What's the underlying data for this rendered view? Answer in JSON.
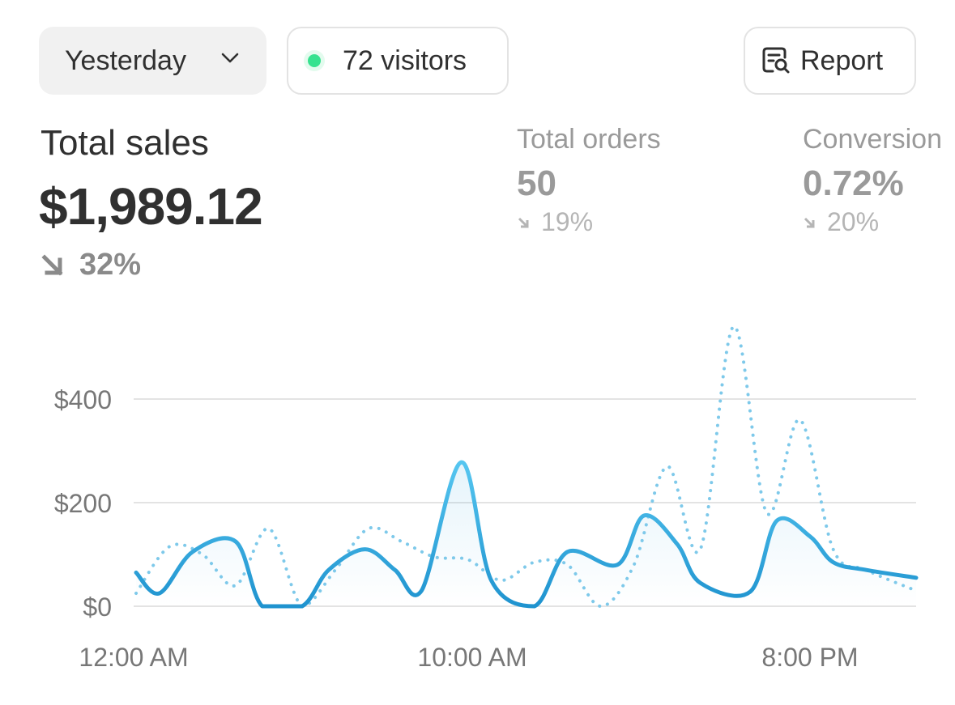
{
  "toolbar": {
    "period_label": "Yesterday",
    "visitors_label": "72 visitors",
    "report_label": "Report"
  },
  "summary": {
    "total_sales_label": "Total sales",
    "total_sales_value": "$1,989.12",
    "total_sales_change": "32%"
  },
  "metrics": {
    "orders_label": "Total orders",
    "orders_value": "50",
    "orders_change": "19%",
    "conversion_label": "Conversion",
    "conversion_value": "0.72%",
    "conversion_change": "20%"
  },
  "colors": {
    "current": "#29a1dc",
    "previous": "#7ec9ea",
    "live_dot": "#36e28f"
  },
  "chart_data": {
    "type": "line",
    "x_labels": [
      "12:00 AM",
      "10:00 AM",
      "8:00 PM"
    ],
    "y_ticks": [
      "$0",
      "$200",
      "$400"
    ],
    "ylim": [
      0,
      400
    ],
    "series": [
      {
        "style": "solid",
        "points": [
          [
            0,
            65
          ],
          [
            0.7,
            25
          ],
          [
            1.7,
            105
          ],
          [
            3,
            125
          ],
          [
            3.8,
            0
          ],
          [
            5,
            0
          ],
          [
            5.8,
            70
          ],
          [
            6.9,
            110
          ],
          [
            7.8,
            70
          ],
          [
            8.6,
            30
          ],
          [
            9.8,
            278
          ],
          [
            10.7,
            50
          ],
          [
            12,
            0
          ],
          [
            13,
            105
          ],
          [
            14.5,
            80
          ],
          [
            15.3,
            175
          ],
          [
            16.3,
            120
          ],
          [
            17,
            45
          ],
          [
            18.5,
            28
          ],
          [
            19.3,
            165
          ],
          [
            20.3,
            135
          ],
          [
            21,
            85
          ],
          [
            22,
            70
          ],
          [
            23.5,
            55
          ]
        ]
      },
      {
        "style": "dotted",
        "points": [
          [
            0,
            25
          ],
          [
            1,
            115
          ],
          [
            2,
            100
          ],
          [
            3,
            40
          ],
          [
            4,
            150
          ],
          [
            5,
            0
          ],
          [
            6,
            70
          ],
          [
            7,
            150
          ],
          [
            8,
            125
          ],
          [
            9,
            95
          ],
          [
            10,
            90
          ],
          [
            11,
            50
          ],
          [
            12,
            85
          ],
          [
            13,
            80
          ],
          [
            14,
            0
          ],
          [
            15,
            80
          ],
          [
            16,
            270
          ],
          [
            17,
            110
          ],
          [
            18,
            540
          ],
          [
            19,
            180
          ],
          [
            20,
            360
          ],
          [
            21,
            110
          ],
          [
            22,
            70
          ],
          [
            23.5,
            30
          ]
        ]
      }
    ]
  }
}
